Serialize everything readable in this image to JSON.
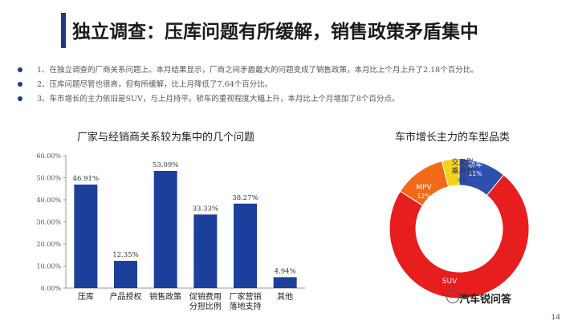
{
  "title": "独立调查：压库问题有所缓解，销售政策矛盾集中",
  "bullets": [
    "1、在独立调查的厂商关系问题上。本月结果显示，厂商之间矛盾最大的问题变成了销售政策，本月比上个月上升了2.18个百分比。",
    "2、压库问题尽管也很高，但有所缓解，比上月降低了7.64个百分比。",
    "3、车市增长的主力依旧是SUV，与上月持平。轿车的重视程度大幅上升，本月比上个月增加了8个百分点。"
  ],
  "page_number": "14",
  "watermark": "汽车锐问答",
  "chart_data": [
    {
      "type": "bar",
      "title": "厂家与经销商关系较为集中的几个问题",
      "categories": [
        "压库",
        "产品授权",
        "销售政策",
        "促销费用分担比例",
        "厂家营销落地支持",
        "其他"
      ],
      "category_lines": [
        [
          "压库"
        ],
        [
          "产品授权"
        ],
        [
          "销售政策"
        ],
        [
          "促销费用",
          "分担比例"
        ],
        [
          "厂家营销",
          "落地支持"
        ],
        [
          "其他"
        ]
      ],
      "values": [
        46.91,
        12.35,
        53.09,
        33.33,
        38.27,
        4.94
      ],
      "data_labels": [
        "46.91%",
        "12.35%",
        "53.09%",
        "33.33%",
        "38.27%",
        "4.94%"
      ],
      "ylim": [
        0,
        60
      ],
      "yticks": [
        "0.00%",
        "10.00%",
        "20.00%",
        "30.00%",
        "40.00%",
        "50.00%",
        "60.00%"
      ],
      "color": "#1b3f9a",
      "grid": false
    },
    {
      "type": "pie",
      "donut": true,
      "title": "车市增长主力的车型品类",
      "slices": [
        {
          "label": "轿车",
          "value": 11,
          "value_label": "11%",
          "color": "#2f4fae"
        },
        {
          "label": "SUV",
          "value": 73,
          "value_label": "SUV",
          "color": "#e81d1d"
        },
        {
          "label": "MPV",
          "value": 12,
          "value_label": "12%",
          "color": "#f26a18"
        },
        {
          "label": "交叉型乘用车",
          "value": 4,
          "value_label": "4%",
          "color": "#f2d21b"
        }
      ],
      "slice_label_lines": [
        [
          "轿车",
          "11%"
        ],
        [
          "SUV"
        ],
        [
          "MPV",
          "12%"
        ],
        [
          "交叉型",
          "乘用车",
          "4%"
        ]
      ]
    }
  ]
}
